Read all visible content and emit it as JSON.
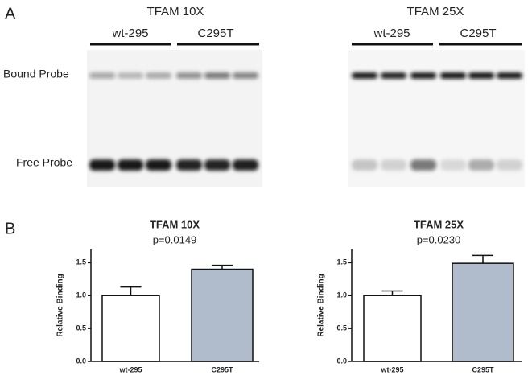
{
  "panel_labels": [
    "A",
    "B"
  ],
  "gels": [
    {
      "title": "TFAM 10X",
      "groups": [
        "wt-295",
        "C295T"
      ]
    },
    {
      "title": "TFAM 25X",
      "groups": [
        "wt-295",
        "C295T"
      ]
    }
  ],
  "row_labels": [
    "Bound Probe",
    "Free Probe"
  ],
  "chart_data": [
    {
      "type": "bar",
      "title": "TFAM 10X",
      "subtitle": "p=0.0149",
      "y_label": "Relative Binding",
      "categories": [
        "wt-295",
        "C295T"
      ],
      "values": [
        1.0,
        1.4
      ],
      "errors": [
        0.13,
        0.06
      ],
      "colors": [
        "#ffffff",
        "#b0bccb"
      ],
      "ylim": [
        0,
        1.7
      ],
      "yticks": [
        {
          "value": 0,
          "label": "0.0"
        },
        {
          "value": 0.5,
          "label": "0.5"
        },
        {
          "value": 1,
          "label": "1.0"
        },
        {
          "value": 1.5,
          "label": "1.5"
        }
      ]
    },
    {
      "type": "bar",
      "title": "TFAM 25X",
      "subtitle": "p=0.0230",
      "y_label": "Relative Binding",
      "categories": [
        "wt-295",
        "C295T"
      ],
      "values": [
        1.0,
        1.49
      ],
      "errors": [
        0.07,
        0.12
      ],
      "colors": [
        "#ffffff",
        "#b0bccb"
      ],
      "ylim": [
        0,
        1.7
      ],
      "yticks": [
        {
          "value": 0,
          "label": "0.0"
        },
        {
          "value": 0.5,
          "label": "0.5"
        },
        {
          "value": 1,
          "label": "1.0"
        },
        {
          "value": 1.5,
          "label": "1.5"
        }
      ]
    }
  ]
}
